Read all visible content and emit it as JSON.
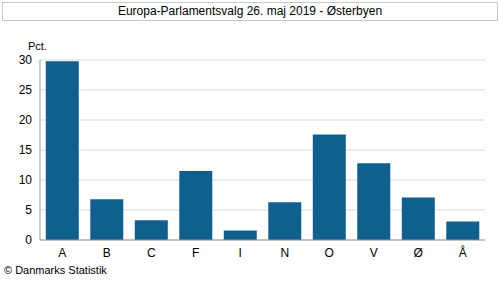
{
  "chart_data": {
    "type": "bar",
    "title": "Europa-Parlamentsvalg 26. maj 2019 - Østerbyen",
    "ylabel": "Pct.",
    "annotation": "© Danmarks Statistik",
    "categories": [
      "A",
      "B",
      "C",
      "F",
      "I",
      "N",
      "O",
      "V",
      "Ø",
      "Å"
    ],
    "values": [
      29.8,
      6.8,
      3.3,
      11.5,
      1.6,
      6.3,
      17.6,
      12.8,
      7.1,
      3.1
    ],
    "color": "#0f5f8f",
    "ylim": [
      0,
      30
    ],
    "yticks": [
      0,
      5,
      10,
      15,
      20,
      25,
      30
    ],
    "grid": true
  }
}
